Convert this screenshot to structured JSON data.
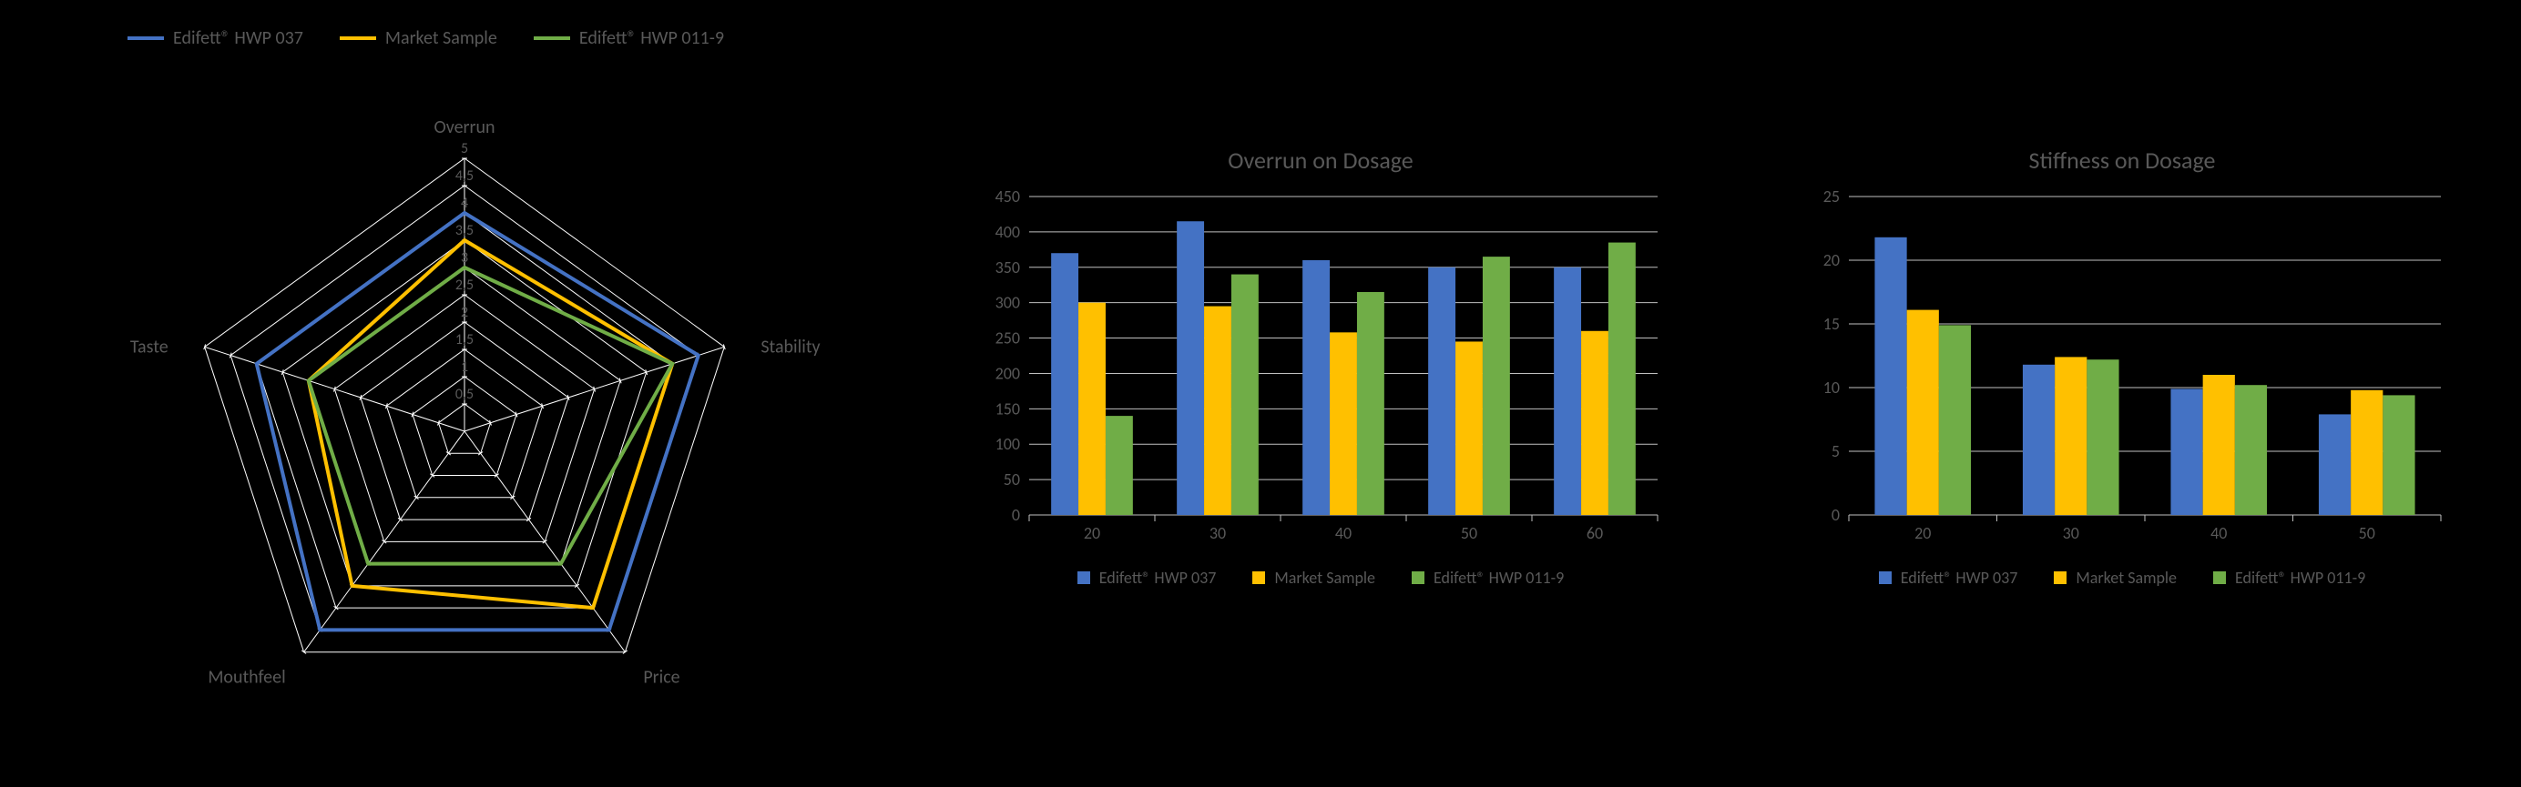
{
  "colors": {
    "series": {
      "hwp037": "#4472c4",
      "market": "#ffc000",
      "hwp0119": "#70ad47"
    },
    "grid": "#bfbfbf",
    "radar_grid": "#ffffff",
    "text": "#595959",
    "background": "#000000"
  },
  "legend": {
    "items": [
      {
        "key": "hwp037",
        "label": "Edifett® HWP 037"
      },
      {
        "key": "market",
        "label": "Market Sample"
      },
      {
        "key": "hwp0119",
        "label": "Edifett® HWP 011-9"
      }
    ]
  },
  "radar": {
    "axes": [
      "Overrun",
      "Stability",
      "Price",
      "Mouthfeel",
      "Taste"
    ],
    "ticks": [
      "0,5",
      "1",
      "1,5",
      "2",
      "2,5",
      "3",
      "3,5",
      "4",
      "4,5",
      "5"
    ],
    "max": 5,
    "series": {
      "hwp037": [
        4.0,
        4.5,
        4.5,
        4.5,
        4.0
      ],
      "market": [
        3.5,
        4.0,
        4.0,
        3.5,
        3.0
      ],
      "hwp0119": [
        3.0,
        4.0,
        3.0,
        3.0,
        3.0
      ]
    },
    "line_width": 4,
    "axis_label_fontsize": 20,
    "tick_fontsize": 16
  },
  "overrun_chart": {
    "type": "bar",
    "title": "Overrun on Dosage",
    "categories": [
      "20",
      "30",
      "40",
      "50",
      "60"
    ],
    "series": {
      "hwp037": [
        370,
        415,
        360,
        350,
        350
      ],
      "market": [
        300,
        295,
        258,
        245,
        260
      ],
      "hwp0119": [
        140,
        340,
        315,
        365,
        385
      ]
    },
    "ylim": [
      0,
      450
    ],
    "ytick_step": 50,
    "bar_group_gap_ratio": 0.35,
    "bar_inner_gap": 0,
    "title_fontsize": 26,
    "tick_fontsize": 18
  },
  "stiffness_chart": {
    "type": "bar",
    "title": "Stiffness on Dosage",
    "categories": [
      "20",
      "30",
      "40",
      "50"
    ],
    "series": {
      "hwp037": [
        21.8,
        11.8,
        9.9,
        7.9
      ],
      "market": [
        16.1,
        12.4,
        11.0,
        9.8
      ],
      "hwp0119": [
        14.9,
        12.2,
        10.2,
        9.4
      ]
    },
    "ylim": [
      0,
      25
    ],
    "ytick_step": 5,
    "bar_group_gap_ratio": 0.35,
    "bar_inner_gap": 0,
    "title_fontsize": 26,
    "tick_fontsize": 18
  }
}
